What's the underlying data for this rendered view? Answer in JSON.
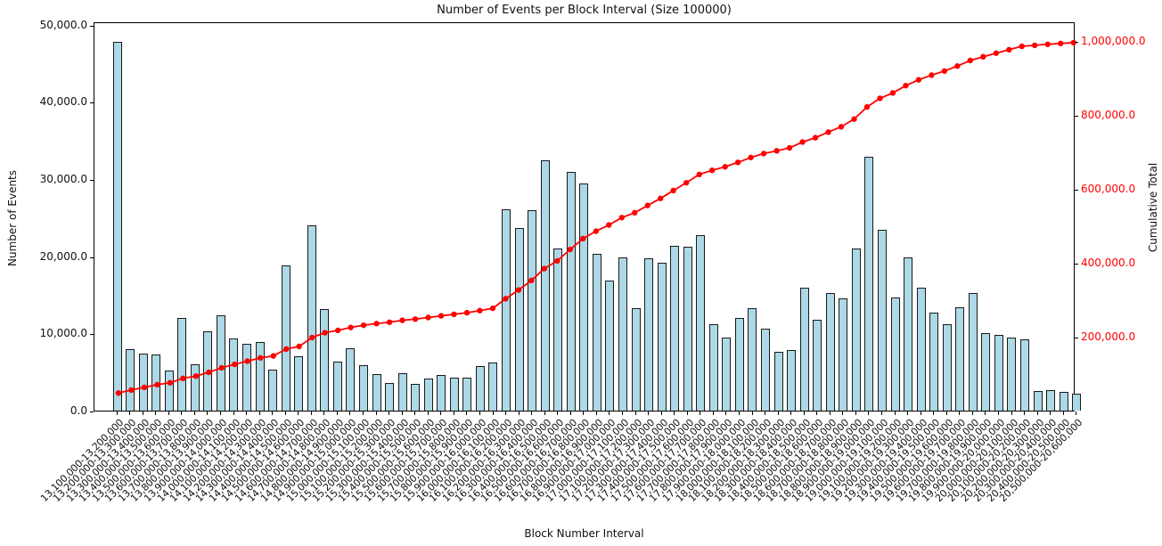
{
  "chart_data": {
    "type": "bar",
    "title": "Number of Events per Block Interval (Size 100000)",
    "xlabel": "Block Number Interval",
    "ylabel": "Number of Events",
    "y2label": "Cumulative Total",
    "grid": false,
    "legend": "none",
    "x_tick_rotation_deg": 45,
    "categories": [
      "13,100,000-13,200,000",
      "13,200,000-13,300,000",
      "13,300,000-13,400,000",
      "13,400,000-13,500,000",
      "13,500,000-13,600,000",
      "13,600,000-13,700,000",
      "13,700,000-13,800,000",
      "13,800,000-13,900,000",
      "13,900,000-14,000,000",
      "14,000,000-14,100,000",
      "14,100,000-14,200,000",
      "14,200,000-14,300,000",
      "14,300,000-14,400,000",
      "14,400,000-14,500,000",
      "14,500,000-14,600,000",
      "14,600,000-14,700,000",
      "14,700,000-14,800,000",
      "14,800,000-14,900,000",
      "14,900,000-15,000,000",
      "15,000,000-15,100,000",
      "15,100,000-15,200,000",
      "15,200,000-15,300,000",
      "15,300,000-15,400,000",
      "15,400,000-15,500,000",
      "15,500,000-15,600,000",
      "15,600,000-15,700,000",
      "15,700,000-15,800,000",
      "15,800,000-15,900,000",
      "15,900,000-16,000,000",
      "16,000,000-16,100,000",
      "16,100,000-16,200,000",
      "16,200,000-16,300,000",
      "16,300,000-16,400,000",
      "16,400,000-16,500,000",
      "16,500,000-16,600,000",
      "16,600,000-16,700,000",
      "16,700,000-16,800,000",
      "16,800,000-16,900,000",
      "16,900,000-17,000,000",
      "17,000,000-17,100,000",
      "17,100,000-17,200,000",
      "17,200,000-17,300,000",
      "17,300,000-17,400,000",
      "17,400,000-17,500,000",
      "17,500,000-17,600,000",
      "17,600,000-17,700,000",
      "17,700,000-17,800,000",
      "17,800,000-17,900,000",
      "17,900,000-18,000,000",
      "18,000,000-18,100,000",
      "18,100,000-18,200,000",
      "18,200,000-18,300,000",
      "18,300,000-18,400,000",
      "18,400,000-18,500,000",
      "18,500,000-18,600,000",
      "18,600,000-18,700,000",
      "18,700,000-18,800,000",
      "18,800,000-18,900,000",
      "18,900,000-19,000,000",
      "19,000,000-19,100,000",
      "19,100,000-19,200,000",
      "19,200,000-19,300,000",
      "19,300,000-19,400,000",
      "19,400,000-19,500,000",
      "19,500,000-19,600,000",
      "19,600,000-19,700,000",
      "19,700,000-19,800,000",
      "19,800,000-19,900,000",
      "19,900,000-20,000,000",
      "20,000,000-20,100,000",
      "20,100,000-20,200,000",
      "20,200,000-20,300,000",
      "20,300,000-20,400,000",
      "20,400,000-20,500,000",
      "20,500,000-20,600,000"
    ],
    "series": [
      {
        "name": "Number of Events",
        "type": "bar",
        "y_axis": "left",
        "color": "#add8e6",
        "edge_color": "#1a1a1a",
        "values": [
          47800,
          8000,
          7400,
          7300,
          5200,
          12000,
          6000,
          10300,
          12400,
          9400,
          8700,
          8900,
          5300,
          18800,
          7000,
          24000,
          13200,
          6300,
          8100,
          5900,
          4700,
          3600,
          4900,
          3500,
          4200,
          4600,
          4300,
          4300,
          5800,
          6200,
          26100,
          23600,
          25900,
          32400,
          21000,
          30900,
          29400,
          20300,
          16900,
          19900,
          13300,
          19700,
          19200,
          21300,
          21200,
          22700,
          11200,
          9500,
          12000,
          13300,
          10600,
          7600,
          7900,
          15900,
          11800,
          15200,
          14500,
          21000,
          32900,
          23400,
          14700,
          19800,
          15900,
          12700,
          11200,
          13400,
          15200,
          10000,
          9800,
          9500,
          9200,
          2600,
          2700,
          2400,
          2200
        ]
      },
      {
        "name": "Cumulative Total",
        "type": "line",
        "y_axis": "right",
        "color": "#ff0000",
        "marker": "o",
        "values": [
          47800,
          55800,
          63200,
          70500,
          75700,
          87700,
          93700,
          104000,
          116400,
          125800,
          134500,
          143400,
          148700,
          167500,
          174500,
          198500,
          211700,
          218000,
          226100,
          232000,
          236700,
          240300,
          245200,
          248700,
          252900,
          257500,
          261800,
          266100,
          271900,
          278100,
          304200,
          327800,
          353700,
          386100,
          407100,
          438000,
          467400,
          487700,
          504600,
          524500,
          537800,
          557500,
          576700,
          598000,
          619200,
          641900,
          653100,
          662600,
          674600,
          687900,
          698500,
          706100,
          714000,
          729900,
          741700,
          756900,
          771400,
          792400,
          825300,
          848700,
          863400,
          883200,
          899100,
          911800,
          923000,
          936400,
          951600,
          961600,
          971400,
          980900,
          990100,
          992700,
          995400,
          997800,
          1000000
        ]
      }
    ],
    "y_left": {
      "range": [
        0,
        50400
      ],
      "ticks": [
        {
          "label": "0.0",
          "value": 0
        },
        {
          "label": "10,000.0",
          "value": 10000
        },
        {
          "label": "20,000.0",
          "value": 20000
        },
        {
          "label": "30,000.0",
          "value": 30000
        },
        {
          "label": "40,000.0",
          "value": 40000
        },
        {
          "label": "50,000.0",
          "value": 50000
        }
      ],
      "color": "#111111"
    },
    "y_right": {
      "range": [
        0,
        1053000
      ],
      "ticks": [
        {
          "label": "200,000.0",
          "value": 200000
        },
        {
          "label": "400,000.0",
          "value": 400000
        },
        {
          "label": "600,000.0",
          "value": 600000
        },
        {
          "label": "800,000.0",
          "value": 800000
        },
        {
          "label": "1,000,000.0",
          "value": 1000000
        }
      ],
      "color": "#ff0000"
    }
  }
}
